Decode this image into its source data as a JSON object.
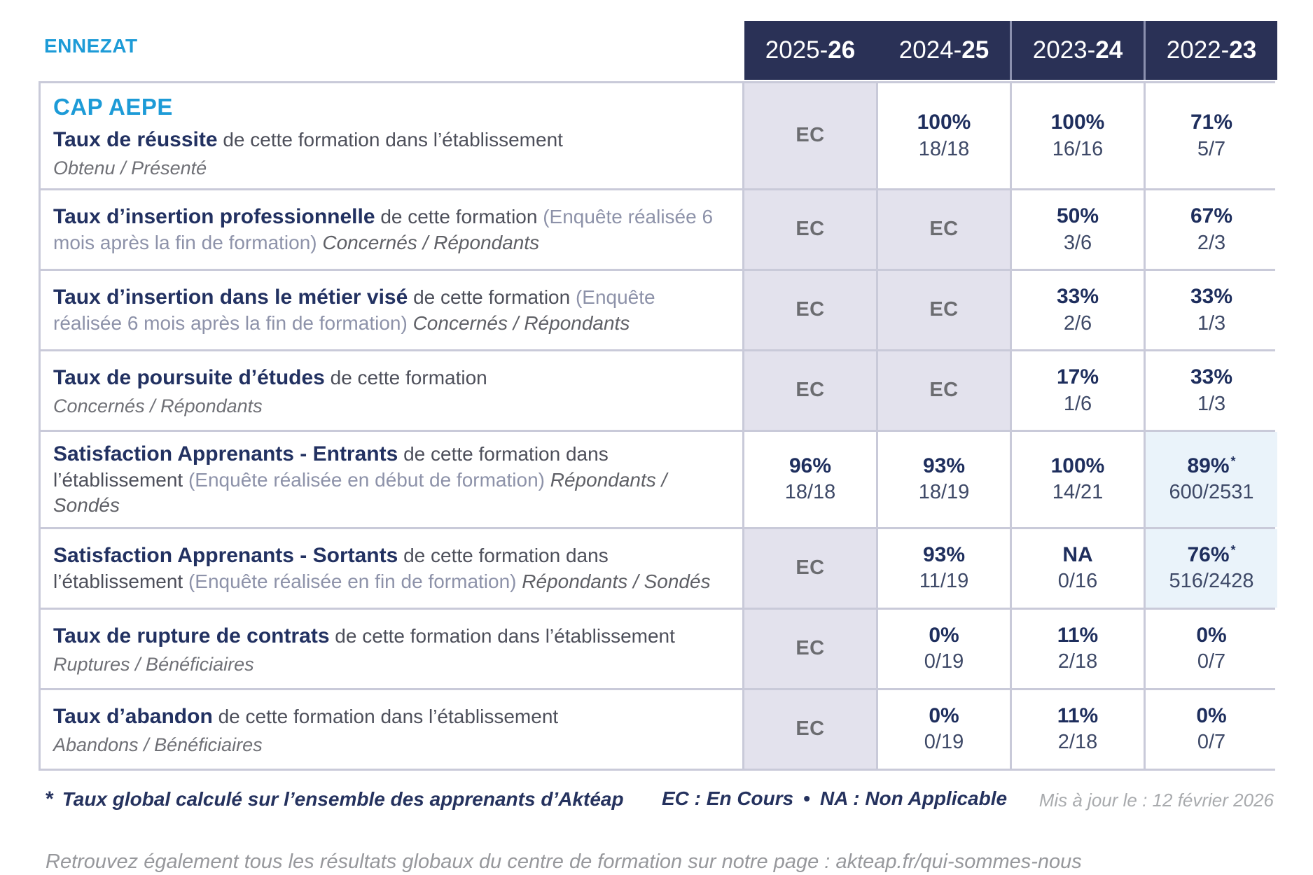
{
  "page": {
    "site_label": "ENNEZAT",
    "accent_color": "#1d9bd7",
    "header_bg_color": "#2a3156",
    "footnote_star": "*",
    "footnote_text": "Taux global calculé sur l’ensemble des apprenants d’Aktéap",
    "legend_ec": "EC : En Cours",
    "legend_sep": "•",
    "legend_na": "NA : Non Applicable",
    "updated": "Mis à jour le : 12 février 2026",
    "bottom_note_prefix": "Retrouvez également tous les résultats globaux du centre de formation sur notre page : ",
    "bottom_note_link": "akteap.fr/qui-sommes-nous"
  },
  "table": {
    "columns": [
      {
        "prefix": "2025-",
        "suffix": "26"
      },
      {
        "prefix": "2024-",
        "suffix": "25"
      },
      {
        "prefix": "2023-",
        "suffix": "24"
      },
      {
        "prefix": "2022-",
        "suffix": "23"
      }
    ],
    "rows": [
      {
        "program_title": "CAP AEPE",
        "title_bold": "Taux de réussite",
        "title_rest": "de cette formation dans l’établissement",
        "paren": "",
        "subnote": "Obtenu / Présenté",
        "subnote_inline": false,
        "cells": [
          {
            "main": "EC",
            "frac": "",
            "style": "ec"
          },
          {
            "main": "100%",
            "frac": "18/18",
            "style": ""
          },
          {
            "main": "100%",
            "frac": "16/16",
            "style": ""
          },
          {
            "main": "71%",
            "frac": "5/7",
            "style": ""
          }
        ]
      },
      {
        "title_bold": "Taux d’insertion professionnelle",
        "title_rest": "de cette formation",
        "paren": "(Enquête réalisée 6 mois après la fin de formation)",
        "subnote": "Concernés / Répondants",
        "subnote_inline": true,
        "cells": [
          {
            "main": "EC",
            "frac": "",
            "style": "ec"
          },
          {
            "main": "EC",
            "frac": "",
            "style": "ec"
          },
          {
            "main": "50%",
            "frac": "3/6",
            "style": ""
          },
          {
            "main": "67%",
            "frac": "2/3",
            "style": ""
          }
        ]
      },
      {
        "title_bold": "Taux d’insertion dans le métier visé",
        "title_rest": "de cette formation",
        "paren": "(Enquête réalisée 6 mois après la fin de formation)",
        "subnote": "Concernés / Répondants",
        "subnote_inline": true,
        "cells": [
          {
            "main": "EC",
            "frac": "",
            "style": "ec"
          },
          {
            "main": "EC",
            "frac": "",
            "style": "ec"
          },
          {
            "main": "33%",
            "frac": "2/6",
            "style": ""
          },
          {
            "main": "33%",
            "frac": "1/3",
            "style": ""
          }
        ]
      },
      {
        "title_bold": "Taux de poursuite d’études",
        "title_rest": "de cette formation",
        "paren": "",
        "subnote": "Concernés / Répondants",
        "subnote_inline": false,
        "cells": [
          {
            "main": "EC",
            "frac": "",
            "style": "ec"
          },
          {
            "main": "EC",
            "frac": "",
            "style": "ec"
          },
          {
            "main": "17%",
            "frac": "1/6",
            "style": ""
          },
          {
            "main": "33%",
            "frac": "1/3",
            "style": ""
          }
        ]
      },
      {
        "title_bold": "Satisfaction Apprenants - Entrants",
        "title_rest": "de cette formation dans l’établissement",
        "paren": "(Enquête réalisée en début de formation)",
        "subnote": "Répondants / Sondés",
        "subnote_inline": true,
        "cells": [
          {
            "main": "96%",
            "frac": "18/18",
            "style": ""
          },
          {
            "main": "93%",
            "frac": "18/19",
            "style": ""
          },
          {
            "main": "100%",
            "frac": "14/21",
            "style": ""
          },
          {
            "main": "89%",
            "star": true,
            "frac": "600/2531",
            "style": "blue"
          }
        ]
      },
      {
        "title_bold": "Satisfaction Apprenants - Sortants",
        "title_rest": "de cette formation dans l’établissement",
        "paren": "(Enquête réalisée en fin de formation)",
        "subnote": "Répondants / Sondés",
        "subnote_inline": true,
        "cells": [
          {
            "main": "EC",
            "frac": "",
            "style": "ec"
          },
          {
            "main": "93%",
            "frac": "11/19",
            "style": ""
          },
          {
            "main": "NA",
            "frac": "0/16",
            "style": ""
          },
          {
            "main": "76%",
            "star": true,
            "frac": "516/2428",
            "style": "blue"
          }
        ]
      },
      {
        "title_bold": "Taux de rupture de contrats",
        "title_rest": "de cette formation dans l’établissement",
        "paren": "",
        "subnote": "Ruptures / Bénéficiaires",
        "subnote_inline": false,
        "cells": [
          {
            "main": "EC",
            "frac": "",
            "style": "ec"
          },
          {
            "main": "0%",
            "frac": "0/19",
            "style": ""
          },
          {
            "main": "11%",
            "frac": "2/18",
            "style": ""
          },
          {
            "main": "0%",
            "frac": "0/7",
            "style": ""
          }
        ]
      },
      {
        "title_bold": "Taux d’abandon",
        "title_rest": "de cette formation dans l’établissement",
        "paren": "",
        "subnote": "Abandons / Bénéficiaires",
        "subnote_inline": false,
        "cells": [
          {
            "main": "EC",
            "frac": "",
            "style": "ec"
          },
          {
            "main": "0%",
            "frac": "0/19",
            "style": ""
          },
          {
            "main": "11%",
            "frac": "2/18",
            "style": ""
          },
          {
            "main": "0%",
            "frac": "0/7",
            "style": ""
          }
        ]
      }
    ]
  }
}
